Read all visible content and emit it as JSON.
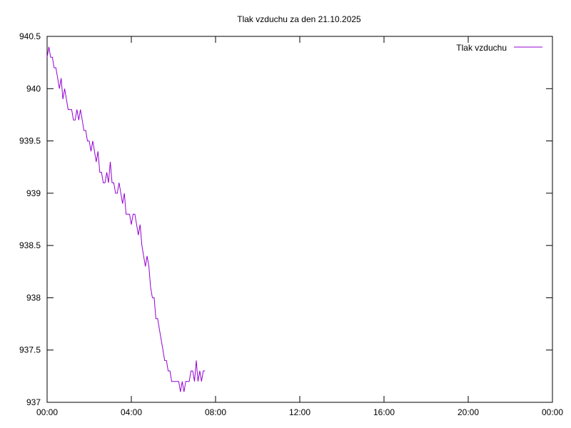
{
  "chart_data": {
    "type": "line",
    "title": "Tlak vzduchu za den 21.10.2025",
    "xlabel": "",
    "ylabel": "",
    "x_ticks": [
      "00:00",
      "04:00",
      "08:00",
      "12:00",
      "16:00",
      "20:00",
      "00:00"
    ],
    "y_ticks": [
      "937",
      "937.5",
      "938",
      "938.5",
      "939",
      "939.5",
      "940",
      "940.5"
    ],
    "xlim": [
      "00:00",
      "24:00"
    ],
    "ylim": [
      937,
      940.5
    ],
    "grid": false,
    "legend_position": "top-right",
    "line_color": "#9400d3",
    "series": [
      {
        "name": "Tlak vzduchu",
        "x": [
          "00:00",
          "00:05",
          "00:10",
          "00:15",
          "00:20",
          "00:25",
          "00:30",
          "00:35",
          "00:40",
          "00:45",
          "00:50",
          "00:55",
          "01:00",
          "01:05",
          "01:10",
          "01:15",
          "01:20",
          "01:25",
          "01:30",
          "01:35",
          "01:40",
          "01:45",
          "01:50",
          "01:55",
          "02:00",
          "02:05",
          "02:10",
          "02:15",
          "02:20",
          "02:25",
          "02:30",
          "02:35",
          "02:40",
          "02:45",
          "02:50",
          "02:55",
          "03:00",
          "03:05",
          "03:10",
          "03:15",
          "03:20",
          "03:25",
          "03:30",
          "03:35",
          "03:40",
          "03:45",
          "03:50",
          "03:55",
          "04:00",
          "04:05",
          "04:10",
          "04:15",
          "04:20",
          "04:25",
          "04:30",
          "04:35",
          "04:40",
          "04:45",
          "04:50",
          "04:55",
          "05:00",
          "05:05",
          "05:10",
          "05:15",
          "05:20",
          "05:25",
          "05:30",
          "05:35",
          "05:40",
          "05:45",
          "05:50",
          "05:55",
          "06:00",
          "06:05",
          "06:10",
          "06:15",
          "06:20",
          "06:25",
          "06:30",
          "06:35",
          "06:40",
          "06:45",
          "06:50",
          "06:55",
          "07:00",
          "07:05",
          "07:10",
          "07:15",
          "07:20",
          "07:25",
          "07:30"
        ],
        "values": [
          940.3,
          940.4,
          940.3,
          940.3,
          940.2,
          940.2,
          940.1,
          940.0,
          940.1,
          939.9,
          940.0,
          939.9,
          939.8,
          939.8,
          939.8,
          939.7,
          939.7,
          939.8,
          939.7,
          939.8,
          939.7,
          939.6,
          939.6,
          939.5,
          939.5,
          939.4,
          939.5,
          939.4,
          939.3,
          939.4,
          939.2,
          939.2,
          939.1,
          939.1,
          939.2,
          939.1,
          939.3,
          939.1,
          939.1,
          939.0,
          939.0,
          939.1,
          939.0,
          938.9,
          939.0,
          938.8,
          938.8,
          938.8,
          938.7,
          938.8,
          938.8,
          938.7,
          938.6,
          938.7,
          938.5,
          938.4,
          938.3,
          938.4,
          938.3,
          938.1,
          938.0,
          938.0,
          937.8,
          937.8,
          937.7,
          937.6,
          937.5,
          937.4,
          937.4,
          937.3,
          937.3,
          937.2,
          937.2,
          937.2,
          937.2,
          937.2,
          937.1,
          937.2,
          937.1,
          937.2,
          937.2,
          937.2,
          937.3,
          937.3,
          937.2,
          937.4,
          937.2,
          937.3,
          937.2,
          937.3,
          937.3
        ]
      }
    ]
  }
}
